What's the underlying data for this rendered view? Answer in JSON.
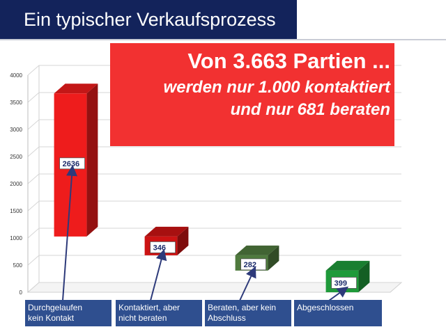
{
  "header": {
    "title": "Ein typischer Verkaufsprozess"
  },
  "callout": {
    "line1": "Von 3.663 Partien ...",
    "line2": "werden nur 1.000 kontaktiert",
    "line3": "und nur 681 beraten"
  },
  "chart_data": {
    "type": "bar",
    "style": "3d-waterfall",
    "ylim": [
      0,
      4000
    ],
    "yticks": [
      "0",
      "500",
      "1000",
      "1500",
      "2000",
      "2500",
      "3000",
      "3500",
      "4000"
    ],
    "categories": [
      {
        "line1": "Durchgelaufen",
        "line2": "kein Kontakt"
      },
      {
        "line1": "Kontaktiert, aber",
        "line2": "nicht beraten"
      },
      {
        "line1": "Beraten, aber kein",
        "line2": "Abschluss"
      },
      {
        "line1": "Abgeschlossen",
        "line2": ""
      }
    ],
    "bars": [
      {
        "base": 1027,
        "value": 2636,
        "label": "2636",
        "color": "#ee1c1c"
      },
      {
        "base": 681,
        "value": 346,
        "label": "346",
        "color": "#cc1313"
      },
      {
        "base": 399,
        "value": 282,
        "label": "282",
        "color": "#4f7a3e"
      },
      {
        "base": 0,
        "value": 399,
        "label": "399",
        "color": "#1f9a3a"
      }
    ],
    "grid": true
  }
}
